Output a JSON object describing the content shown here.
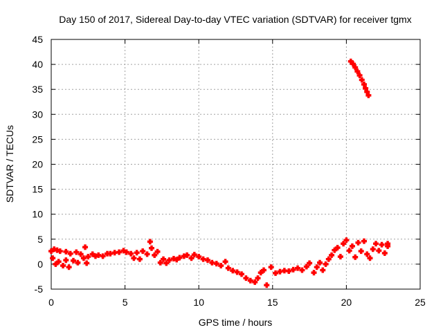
{
  "chart_data": {
    "type": "scatter",
    "title": "Day 150 of 2017, Sidereal Day-to-day VTEC variation (SDTVAR) for receiver tgmx",
    "xlabel": "GPS time / hours",
    "ylabel": "SDTVAR / TECUs",
    "xlim": [
      0,
      25
    ],
    "ylim": [
      -5,
      45
    ],
    "xticks": [
      0,
      5,
      10,
      15,
      20,
      25
    ],
    "yticks": [
      -5,
      0,
      5,
      10,
      15,
      20,
      25,
      30,
      35,
      40,
      45
    ],
    "grid": true,
    "series": [
      {
        "name": "SDTVAR",
        "color": "#ff0000",
        "marker": "plus",
        "points": [
          [
            0.0,
            2.6
          ],
          [
            0.1,
            1.2
          ],
          [
            0.2,
            3.0
          ],
          [
            0.3,
            0.0
          ],
          [
            0.4,
            2.8
          ],
          [
            0.5,
            0.5
          ],
          [
            0.6,
            2.6
          ],
          [
            0.8,
            -0.3
          ],
          [
            1.0,
            2.5
          ],
          [
            1.0,
            0.8
          ],
          [
            1.2,
            -0.6
          ],
          [
            1.3,
            2.1
          ],
          [
            1.5,
            0.7
          ],
          [
            1.7,
            2.4
          ],
          [
            1.8,
            0.3
          ],
          [
            2.0,
            2.0
          ],
          [
            2.2,
            1.2
          ],
          [
            2.3,
            3.4
          ],
          [
            2.4,
            0.2
          ],
          [
            2.5,
            1.5
          ],
          [
            2.8,
            2.0
          ],
          [
            3.0,
            1.6
          ],
          [
            3.2,
            1.8
          ],
          [
            3.5,
            1.6
          ],
          [
            3.8,
            2.1
          ],
          [
            4.0,
            2.1
          ],
          [
            4.3,
            2.3
          ],
          [
            4.6,
            2.4
          ],
          [
            4.9,
            2.7
          ],
          [
            5.1,
            2.4
          ],
          [
            5.4,
            2.1
          ],
          [
            5.6,
            1.2
          ],
          [
            5.8,
            2.3
          ],
          [
            6.0,
            1.0
          ],
          [
            6.2,
            2.6
          ],
          [
            6.5,
            2.0
          ],
          [
            6.7,
            4.5
          ],
          [
            6.8,
            3.2
          ],
          [
            7.0,
            1.8
          ],
          [
            7.2,
            2.5
          ],
          [
            7.4,
            0.3
          ],
          [
            7.6,
            1.0
          ],
          [
            7.8,
            0.2
          ],
          [
            8.0,
            0.8
          ],
          [
            8.3,
            1.1
          ],
          [
            8.5,
            0.9
          ],
          [
            8.7,
            1.3
          ],
          [
            9.0,
            1.6
          ],
          [
            9.2,
            1.8
          ],
          [
            9.5,
            1.2
          ],
          [
            9.7,
            1.9
          ],
          [
            10.0,
            1.5
          ],
          [
            10.3,
            1.0
          ],
          [
            10.6,
            0.8
          ],
          [
            10.9,
            0.3
          ],
          [
            11.2,
            0.1
          ],
          [
            11.5,
            -0.3
          ],
          [
            11.8,
            0.5
          ],
          [
            12.0,
            -0.8
          ],
          [
            12.3,
            -1.3
          ],
          [
            12.6,
            -1.6
          ],
          [
            12.9,
            -2.0
          ],
          [
            13.2,
            -2.8
          ],
          [
            13.5,
            -3.3
          ],
          [
            13.8,
            -3.6
          ],
          [
            14.0,
            -2.8
          ],
          [
            14.2,
            -1.7
          ],
          [
            14.4,
            -1.2
          ],
          [
            14.6,
            -4.2
          ],
          [
            14.9,
            -0.6
          ],
          [
            15.2,
            -1.8
          ],
          [
            15.5,
            -1.5
          ],
          [
            15.8,
            -1.3
          ],
          [
            16.1,
            -1.4
          ],
          [
            16.4,
            -1.1
          ],
          [
            16.7,
            -0.8
          ],
          [
            17.0,
            -1.2
          ],
          [
            17.3,
            -0.5
          ],
          [
            17.5,
            0.2
          ],
          [
            17.8,
            -1.7
          ],
          [
            18.0,
            -0.6
          ],
          [
            18.2,
            0.3
          ],
          [
            18.4,
            -1.2
          ],
          [
            18.6,
            0.0
          ],
          [
            18.8,
            1.0
          ],
          [
            19.0,
            1.8
          ],
          [
            19.2,
            2.8
          ],
          [
            19.4,
            3.3
          ],
          [
            19.6,
            1.5
          ],
          [
            19.8,
            4.1
          ],
          [
            20.0,
            4.8
          ],
          [
            20.2,
            2.7
          ],
          [
            20.4,
            3.6
          ],
          [
            20.6,
            1.4
          ],
          [
            20.8,
            4.3
          ],
          [
            21.0,
            2.6
          ],
          [
            21.2,
            4.6
          ],
          [
            21.4,
            2.0
          ],
          [
            21.6,
            1.2
          ],
          [
            21.8,
            3.0
          ],
          [
            22.0,
            4.1
          ],
          [
            22.2,
            2.7
          ],
          [
            22.4,
            3.9
          ],
          [
            22.6,
            2.2
          ],
          [
            22.8,
            3.6
          ],
          [
            22.8,
            4.1
          ],
          [
            20.3,
            40.6
          ],
          [
            20.45,
            40.1
          ],
          [
            20.6,
            39.4
          ],
          [
            20.75,
            38.6
          ],
          [
            20.9,
            37.8
          ],
          [
            21.05,
            36.9
          ],
          [
            21.2,
            36.0
          ],
          [
            21.3,
            35.2
          ],
          [
            21.4,
            34.5
          ],
          [
            21.5,
            33.8
          ]
        ]
      }
    ]
  }
}
